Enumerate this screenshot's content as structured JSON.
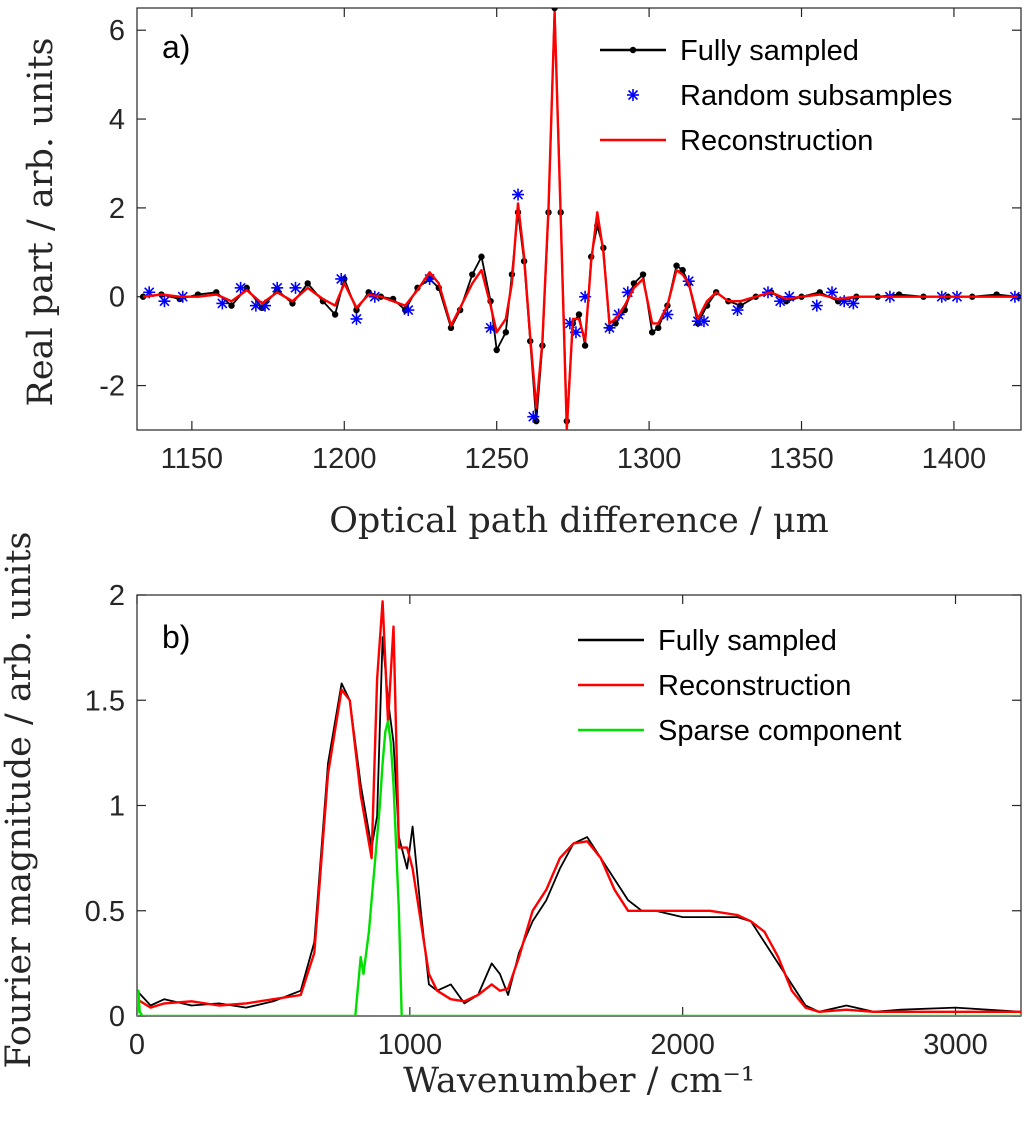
{
  "chart_data": [
    {
      "type": "line",
      "panel_label": "a)",
      "xlabel": "Optical path difference / μm",
      "ylabel": "Real part / arb. units",
      "xlim": [
        1132,
        1422
      ],
      "ylim": [
        -3,
        6.5
      ],
      "xticks": [
        1150,
        1200,
        1250,
        1300,
        1350,
        1400
      ],
      "yticks": [
        -2,
        0,
        2,
        4,
        6
      ],
      "xtick_labels": [
        "1150",
        "1200",
        "1250",
        "1300",
        "1350",
        "1400"
      ],
      "ytick_labels": [
        "-2",
        "0",
        "2",
        "4",
        "6"
      ],
      "legend_position": "top-right",
      "legend": [
        "Fully sampled",
        "Random subsamples",
        "Reconstruction"
      ],
      "series": [
        {
          "name": "Fully sampled",
          "color": "#000000",
          "marker": "dot",
          "x": [
            1134,
            1140,
            1146,
            1152,
            1158,
            1163,
            1168,
            1173,
            1178,
            1183,
            1188,
            1193,
            1197,
            1200,
            1204,
            1208,
            1212,
            1216,
            1220,
            1224,
            1228,
            1231,
            1235,
            1238,
            1242,
            1245,
            1248,
            1250,
            1253,
            1255,
            1257,
            1259,
            1261,
            1263,
            1265,
            1267,
            1269,
            1271,
            1273,
            1275,
            1277,
            1279,
            1281,
            1283,
            1285,
            1287,
            1289,
            1292,
            1295,
            1298,
            1301,
            1303,
            1306,
            1309,
            1311,
            1313,
            1316,
            1319,
            1322,
            1326,
            1330,
            1335,
            1340,
            1345,
            1350,
            1356,
            1362,
            1368,
            1375,
            1382,
            1390,
            1398,
            1406,
            1414,
            1421
          ],
          "y": [
            0.0,
            0.05,
            -0.05,
            0.05,
            0.1,
            -0.2,
            0.2,
            -0.25,
            0.15,
            -0.15,
            0.3,
            -0.1,
            -0.4,
            0.4,
            -0.3,
            0.1,
            0.0,
            -0.05,
            -0.3,
            0.2,
            0.4,
            0.2,
            -0.7,
            -0.3,
            0.5,
            0.9,
            -0.1,
            -1.2,
            -0.8,
            0.5,
            1.9,
            0.8,
            -1.0,
            -2.8,
            -1.1,
            1.9,
            6.5,
            1.9,
            -2.8,
            -0.6,
            -0.4,
            -1.1,
            0.9,
            1.6,
            1.1,
            -0.7,
            -0.6,
            -0.3,
            0.3,
            0.5,
            -0.8,
            -0.7,
            -0.2,
            0.7,
            0.6,
            0.3,
            -0.6,
            -0.2,
            0.1,
            -0.1,
            -0.2,
            0.0,
            0.1,
            -0.1,
            0.0,
            0.1,
            -0.1,
            0.0,
            0.0,
            0.05,
            0.0,
            0.0,
            0.0,
            0.05,
            0.0
          ]
        },
        {
          "name": "Random subsamples",
          "color": "#0000ff",
          "marker": "asterisk",
          "x": [
            1136,
            1141,
            1147,
            1160,
            1166,
            1171,
            1174,
            1178,
            1184,
            1199,
            1204,
            1210,
            1221,
            1228,
            1248,
            1257,
            1262,
            1274,
            1276,
            1279,
            1287,
            1290,
            1293,
            1306,
            1313,
            1316,
            1318,
            1329,
            1339,
            1343,
            1346,
            1355,
            1360,
            1364,
            1367,
            1379,
            1396,
            1401,
            1420
          ],
          "y": [
            0.1,
            -0.1,
            0.0,
            -0.15,
            0.2,
            -0.2,
            -0.2,
            0.2,
            0.2,
            0.4,
            -0.5,
            0.0,
            -0.3,
            0.4,
            -0.7,
            2.3,
            -2.7,
            -0.6,
            -0.8,
            0.0,
            -0.7,
            -0.4,
            0.1,
            -0.4,
            0.35,
            -0.55,
            -0.55,
            -0.3,
            0.1,
            -0.1,
            0.0,
            -0.2,
            0.1,
            -0.1,
            -0.15,
            0.0,
            0.0,
            0.0,
            0.0
          ]
        },
        {
          "name": "Reconstruction",
          "color": "#ff0000",
          "marker": "none",
          "x": [
            1134,
            1140,
            1146,
            1152,
            1158,
            1163,
            1168,
            1173,
            1178,
            1183,
            1188,
            1193,
            1197,
            1200,
            1204,
            1208,
            1212,
            1216,
            1220,
            1224,
            1228,
            1231,
            1235,
            1238,
            1242,
            1245,
            1248,
            1250,
            1253,
            1255,
            1257,
            1259,
            1261,
            1263,
            1265,
            1267,
            1269,
            1271,
            1273,
            1275,
            1277,
            1279,
            1281,
            1283,
            1285,
            1287,
            1289,
            1292,
            1295,
            1298,
            1301,
            1303,
            1306,
            1309,
            1311,
            1313,
            1316,
            1319,
            1322,
            1326,
            1330,
            1335,
            1340,
            1345,
            1350,
            1356,
            1362,
            1368,
            1375,
            1382,
            1390,
            1398,
            1406,
            1414,
            1421
          ],
          "y": [
            0.0,
            0.05,
            0.0,
            0.0,
            0.05,
            -0.1,
            0.15,
            -0.15,
            0.1,
            -0.1,
            0.2,
            -0.05,
            -0.2,
            0.3,
            -0.25,
            0.05,
            0.0,
            -0.1,
            -0.2,
            0.15,
            0.55,
            0.3,
            -0.65,
            -0.25,
            0.3,
            0.6,
            -0.2,
            -0.8,
            -0.5,
            0.3,
            2.1,
            0.9,
            -0.9,
            -2.5,
            -1.0,
            2.0,
            6.4,
            1.8,
            -3.0,
            -0.5,
            -0.5,
            -1.0,
            0.8,
            1.9,
            1.0,
            -0.6,
            -0.5,
            -0.2,
            0.2,
            0.4,
            -0.6,
            -0.6,
            -0.2,
            0.6,
            0.5,
            0.3,
            -0.5,
            -0.1,
            0.1,
            -0.1,
            -0.1,
            0.0,
            0.1,
            -0.05,
            0.0,
            0.05,
            -0.05,
            0.0,
            0.0,
            0.0,
            0.0,
            0.0,
            0.0,
            0.0,
            0.0
          ]
        }
      ]
    },
    {
      "type": "line",
      "panel_label": "b)",
      "xlabel": "Wavenumber / cm⁻¹",
      "ylabel": "Fourier magnitude / arb. units",
      "xlim": [
        0,
        3240
      ],
      "ylim": [
        0,
        2
      ],
      "xticks": [
        0,
        1000,
        2000,
        3000
      ],
      "yticks": [
        0,
        0.5,
        1,
        1.5,
        2
      ],
      "xtick_labels": [
        "0",
        "1000",
        "2000",
        "3000"
      ],
      "ytick_labels": [
        "0",
        "0.5",
        "1",
        "1.5",
        "2"
      ],
      "legend_position": "top-right",
      "legend": [
        "Fully sampled",
        "Reconstruction",
        "Sparse component"
      ],
      "series": [
        {
          "name": "Fully sampled",
          "color": "#000000",
          "x": [
            0,
            50,
            100,
            200,
            300,
            400,
            500,
            600,
            650,
            700,
            750,
            780,
            820,
            860,
            880,
            900,
            920,
            940,
            960,
            990,
            1010,
            1040,
            1070,
            1100,
            1150,
            1200,
            1250,
            1300,
            1330,
            1360,
            1400,
            1450,
            1500,
            1550,
            1600,
            1650,
            1700,
            1750,
            1800,
            1850,
            1900,
            2000,
            2100,
            2200,
            2250,
            2300,
            2350,
            2400,
            2450,
            2500,
            2600,
            2700,
            2800,
            3000,
            3240
          ],
          "y": [
            0.12,
            0.05,
            0.08,
            0.05,
            0.06,
            0.04,
            0.07,
            0.12,
            0.35,
            1.2,
            1.58,
            1.5,
            1.1,
            0.8,
            0.95,
            1.8,
            1.5,
            1.3,
            0.85,
            0.7,
            0.9,
            0.5,
            0.15,
            0.12,
            0.15,
            0.06,
            0.1,
            0.25,
            0.2,
            0.1,
            0.3,
            0.45,
            0.55,
            0.7,
            0.82,
            0.85,
            0.75,
            0.65,
            0.55,
            0.5,
            0.5,
            0.47,
            0.47,
            0.47,
            0.45,
            0.35,
            0.25,
            0.15,
            0.05,
            0.02,
            0.05,
            0.02,
            0.03,
            0.04,
            0.02
          ]
        },
        {
          "name": "Reconstruction",
          "color": "#ff0000",
          "x": [
            0,
            50,
            100,
            200,
            300,
            400,
            500,
            600,
            650,
            700,
            750,
            780,
            820,
            860,
            880,
            900,
            920,
            940,
            960,
            990,
            1010,
            1040,
            1070,
            1100,
            1150,
            1200,
            1250,
            1300,
            1330,
            1360,
            1400,
            1450,
            1500,
            1550,
            1600,
            1650,
            1700,
            1750,
            1800,
            1850,
            1900,
            2000,
            2100,
            2200,
            2250,
            2300,
            2350,
            2400,
            2450,
            2500,
            2600,
            2700,
            2800,
            3000,
            3240
          ],
          "y": [
            0.08,
            0.04,
            0.06,
            0.07,
            0.05,
            0.06,
            0.08,
            0.1,
            0.3,
            1.15,
            1.55,
            1.5,
            1.05,
            0.75,
            1.6,
            1.97,
            1.4,
            1.85,
            0.8,
            0.8,
            0.7,
            0.45,
            0.2,
            0.12,
            0.08,
            0.07,
            0.1,
            0.15,
            0.12,
            0.13,
            0.28,
            0.5,
            0.6,
            0.75,
            0.82,
            0.83,
            0.75,
            0.6,
            0.5,
            0.5,
            0.5,
            0.5,
            0.5,
            0.48,
            0.45,
            0.4,
            0.28,
            0.12,
            0.04,
            0.02,
            0.03,
            0.02,
            0.02,
            0.02,
            0.02
          ]
        },
        {
          "name": "Sparse component",
          "color": "#00e000",
          "x": [
            0,
            5,
            10,
            20,
            780,
            800,
            820,
            830,
            840,
            850,
            860,
            870,
            880,
            890,
            900,
            910,
            920,
            930,
            940,
            950,
            960,
            970,
            980,
            3240
          ],
          "y": [
            0.0,
            0.12,
            0.02,
            0.0,
            0.0,
            0.0,
            0.28,
            0.2,
            0.3,
            0.4,
            0.55,
            0.7,
            0.85,
            1.0,
            1.2,
            1.35,
            1.4,
            1.3,
            1.1,
            0.8,
            0.5,
            0.0,
            0.0,
            0.0
          ]
        }
      ]
    }
  ]
}
